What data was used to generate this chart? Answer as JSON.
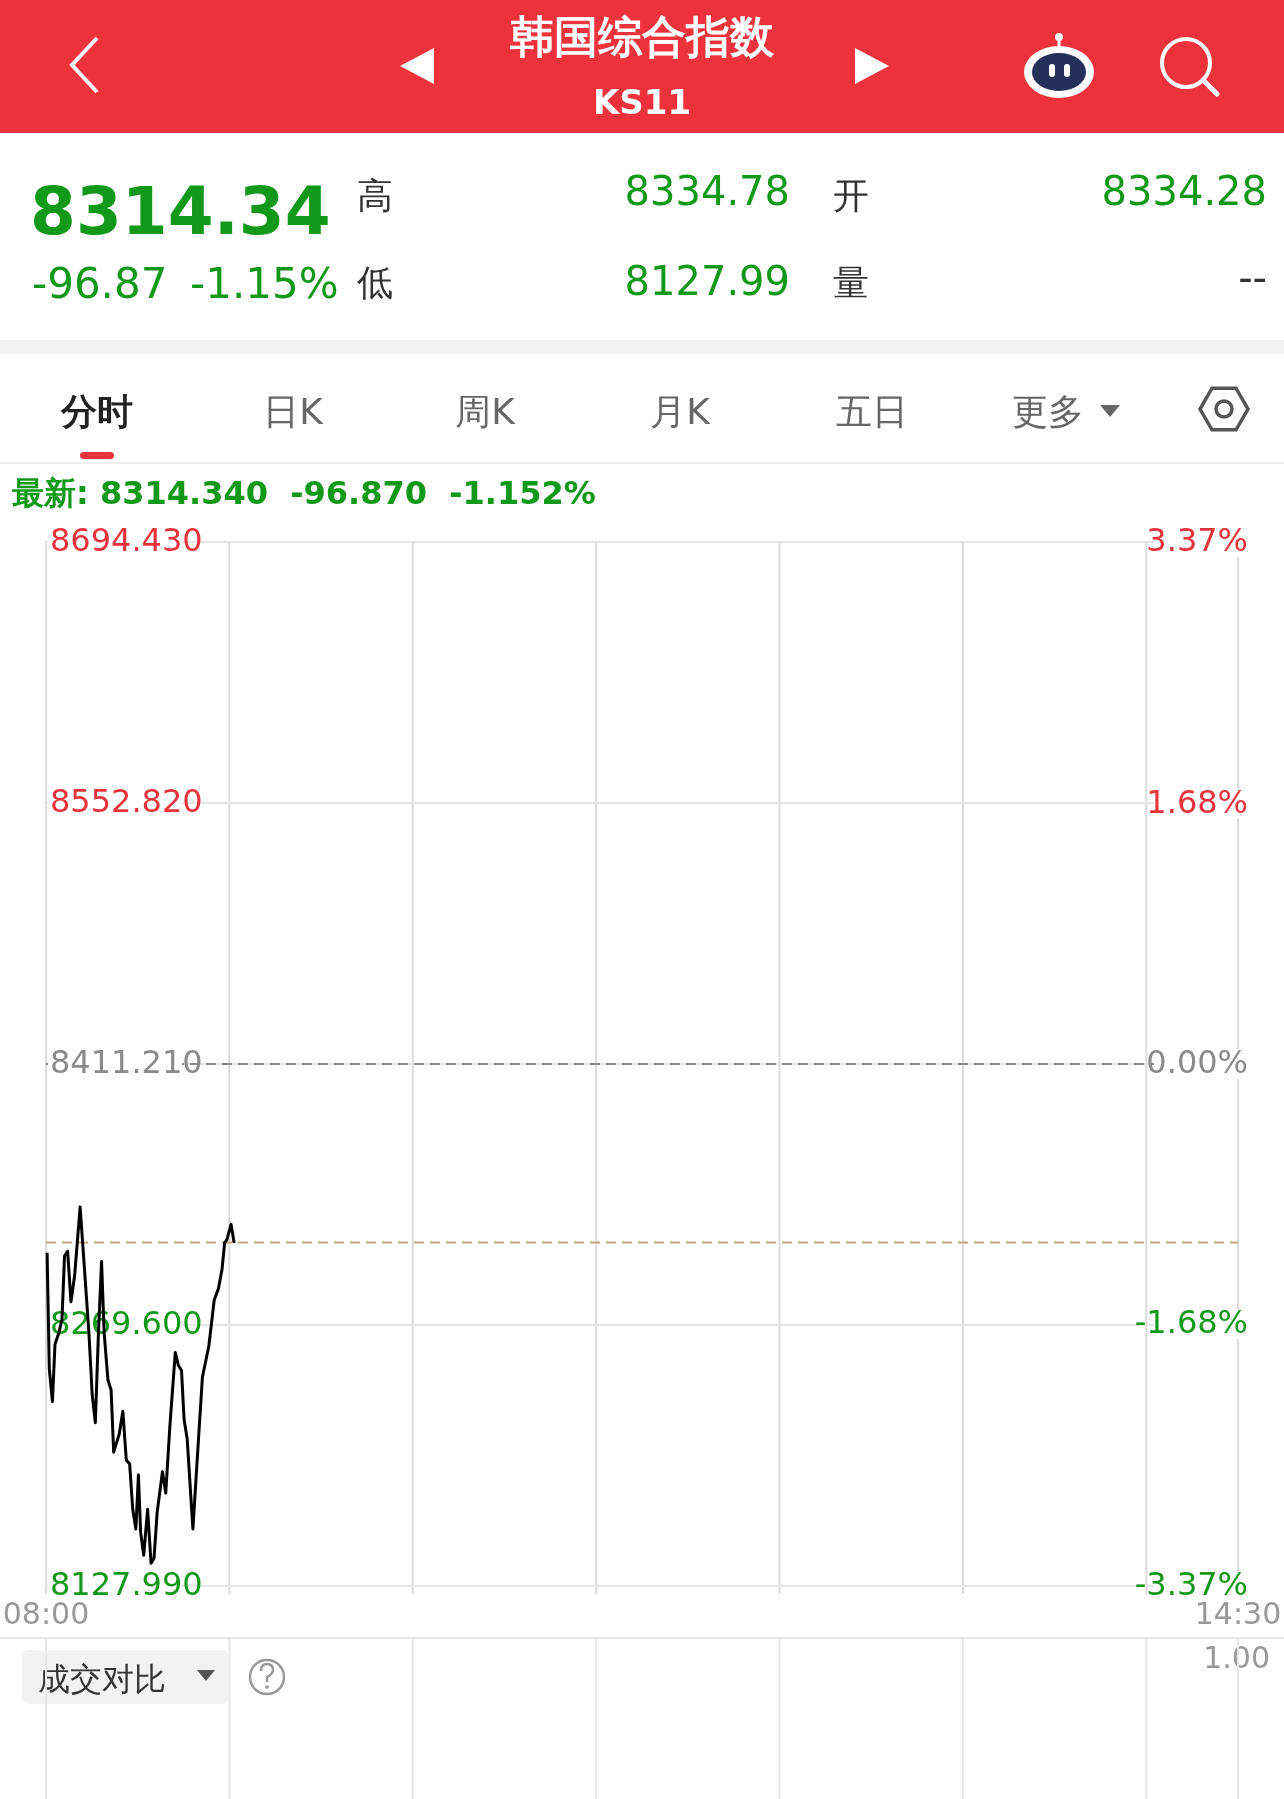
{
  "chart_data": {
    "type": "line",
    "title": "韩国综合指数",
    "subtitle": "KS11",
    "annotations": [
      "8314.34",
      "高",
      "8334.78",
      "开",
      "8334.28",
      "-96.87",
      "-1.15%",
      "低",
      "8127.99",
      "量",
      "--",
      "分时",
      "日K",
      "周K",
      "月K",
      "五日",
      "更多",
      "最新: 8314.340  -96.870  -1.152%",
      "成交对比",
      "1.00"
    ],
    "x": [
      8.006,
      8.018,
      8.035,
      8.049,
      8.07,
      8.087,
      8.101,
      8.118,
      8.136,
      8.156,
      8.186,
      8.208,
      8.234,
      8.252,
      8.269,
      8.286,
      8.303,
      8.317,
      8.338,
      8.355,
      8.369,
      8.399,
      8.419,
      8.438,
      8.456,
      8.473,
      8.49,
      8.504,
      8.516,
      8.533,
      8.554,
      8.573,
      8.589,
      8.606,
      8.635,
      8.653,
      8.675,
      8.705,
      8.722,
      8.739,
      8.753,
      8.77,
      8.801,
      8.831,
      8.853,
      8.888,
      8.917,
      8.94,
      8.96,
      8.974,
      8.986,
      9.009,
      9.026
    ],
    "series": [
      {
        "color": "#000000",
        "values": [
          8308.8,
          8245.8,
          8228.1,
          8259.1,
          8265.3,
          8272.4,
          8307.0,
          8309.6,
          8282.2,
          8296.3,
          8333.6,
          8302.5,
          8265.3,
          8231.6,
          8216.6,
          8265.3,
          8304.0,
          8265.3,
          8239.6,
          8234.3,
          8200.6,
          8210.3,
          8222.8,
          8196.2,
          8194.4,
          8169.6,
          8158.9,
          8188.2,
          8157.2,
          8144.7,
          8169.6,
          8140.3,
          8143.0,
          8167.8,
          8190.0,
          8178.4,
          8213.9,
          8254.7,
          8247.6,
          8244.9,
          8218.3,
          8207.7,
          8158.9,
          8206.8,
          8241.4,
          8258.2,
          8283.0,
          8289.3,
          8299.9,
          8314.1,
          8315.8,
          8324.2,
          8314.1
        ]
      }
    ],
    "xlim": [
      8,
      14.5
    ],
    "xticks": [
      {
        "value": 8,
        "label": "08:00"
      },
      {
        "value": 9,
        "label": null
      },
      {
        "value": 10,
        "label": null
      },
      {
        "value": 11,
        "label": null
      },
      {
        "value": 12,
        "label": null
      },
      {
        "value": 13,
        "label": null
      },
      {
        "value": 14,
        "label": null
      },
      {
        "value": 14.5,
        "label": "14:30"
      }
    ],
    "ylim": [
      8127.99,
      8694.43
    ],
    "yticks": [
      {
        "value": 8127.99,
        "label": "8127.990"
      },
      {
        "value": 8269.6,
        "label": "8269.600"
      },
      {
        "value": 8411.21,
        "label": "8411.210"
      },
      {
        "value": 8552.82,
        "label": "8552.820"
      },
      {
        "value": 8694.43,
        "label": "8694.430"
      }
    ],
    "y2lim": [
      -3.37,
      3.37
    ],
    "y2ticks": [
      {
        "value": -3.37,
        "label": "-3.37%"
      },
      {
        "value": -1.68,
        "label": "-1.68%"
      },
      {
        "value": 0,
        "label": "0.00%"
      },
      {
        "value": 1.68,
        "label": "1.68%"
      },
      {
        "value": 3.37,
        "label": "3.37%"
      }
    ],
    "grid": true,
    "ref_lines": [
      {
        "axis": "y",
        "value": 8411.21,
        "color": "#888888",
        "line_style": "dashed"
      },
      {
        "axis": "y",
        "value": 8314.34,
        "color": "#c9a27e",
        "line_style": "dashed"
      }
    ]
  }
}
